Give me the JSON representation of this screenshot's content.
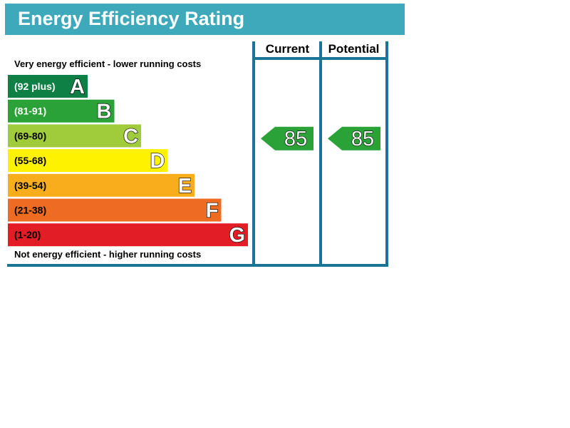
{
  "title": "Energy Efficiency Rating",
  "captions": {
    "top": "Very energy efficient - lower running costs",
    "bottom": "Not energy efficient - higher running costs"
  },
  "columns": {
    "current": "Current",
    "potential": "Potential"
  },
  "colors": {
    "title_bar": "#3ea9bb",
    "frame": "#1a7496",
    "arrow": "#2ba238"
  },
  "chart_data": {
    "type": "bar",
    "categories": [
      "A",
      "B",
      "C",
      "D",
      "E",
      "F",
      "G"
    ],
    "bands": [
      {
        "letter": "A",
        "range": "(92 plus)",
        "color": "#0f8045",
        "label_color": "#ffffff"
      },
      {
        "letter": "B",
        "range": "(81-91)",
        "color": "#2ba238",
        "label_color": "#ffffff"
      },
      {
        "letter": "C",
        "range": "(69-80)",
        "color": "#a0cb3a",
        "label_color": "#000000"
      },
      {
        "letter": "D",
        "range": "(55-68)",
        "color": "#fff200",
        "label_color": "#000000"
      },
      {
        "letter": "E",
        "range": "(39-54)",
        "color": "#f8ad1d",
        "label_color": "#000000"
      },
      {
        "letter": "F",
        "range": "(21-38)",
        "color": "#ee6b22",
        "label_color": "#000000"
      },
      {
        "letter": "G",
        "range": "(1-20)",
        "color": "#e21d25",
        "label_color": "#000000"
      }
    ],
    "current": {
      "value": 85,
      "band": "B"
    },
    "potential": {
      "value": 85,
      "band": "B"
    }
  }
}
